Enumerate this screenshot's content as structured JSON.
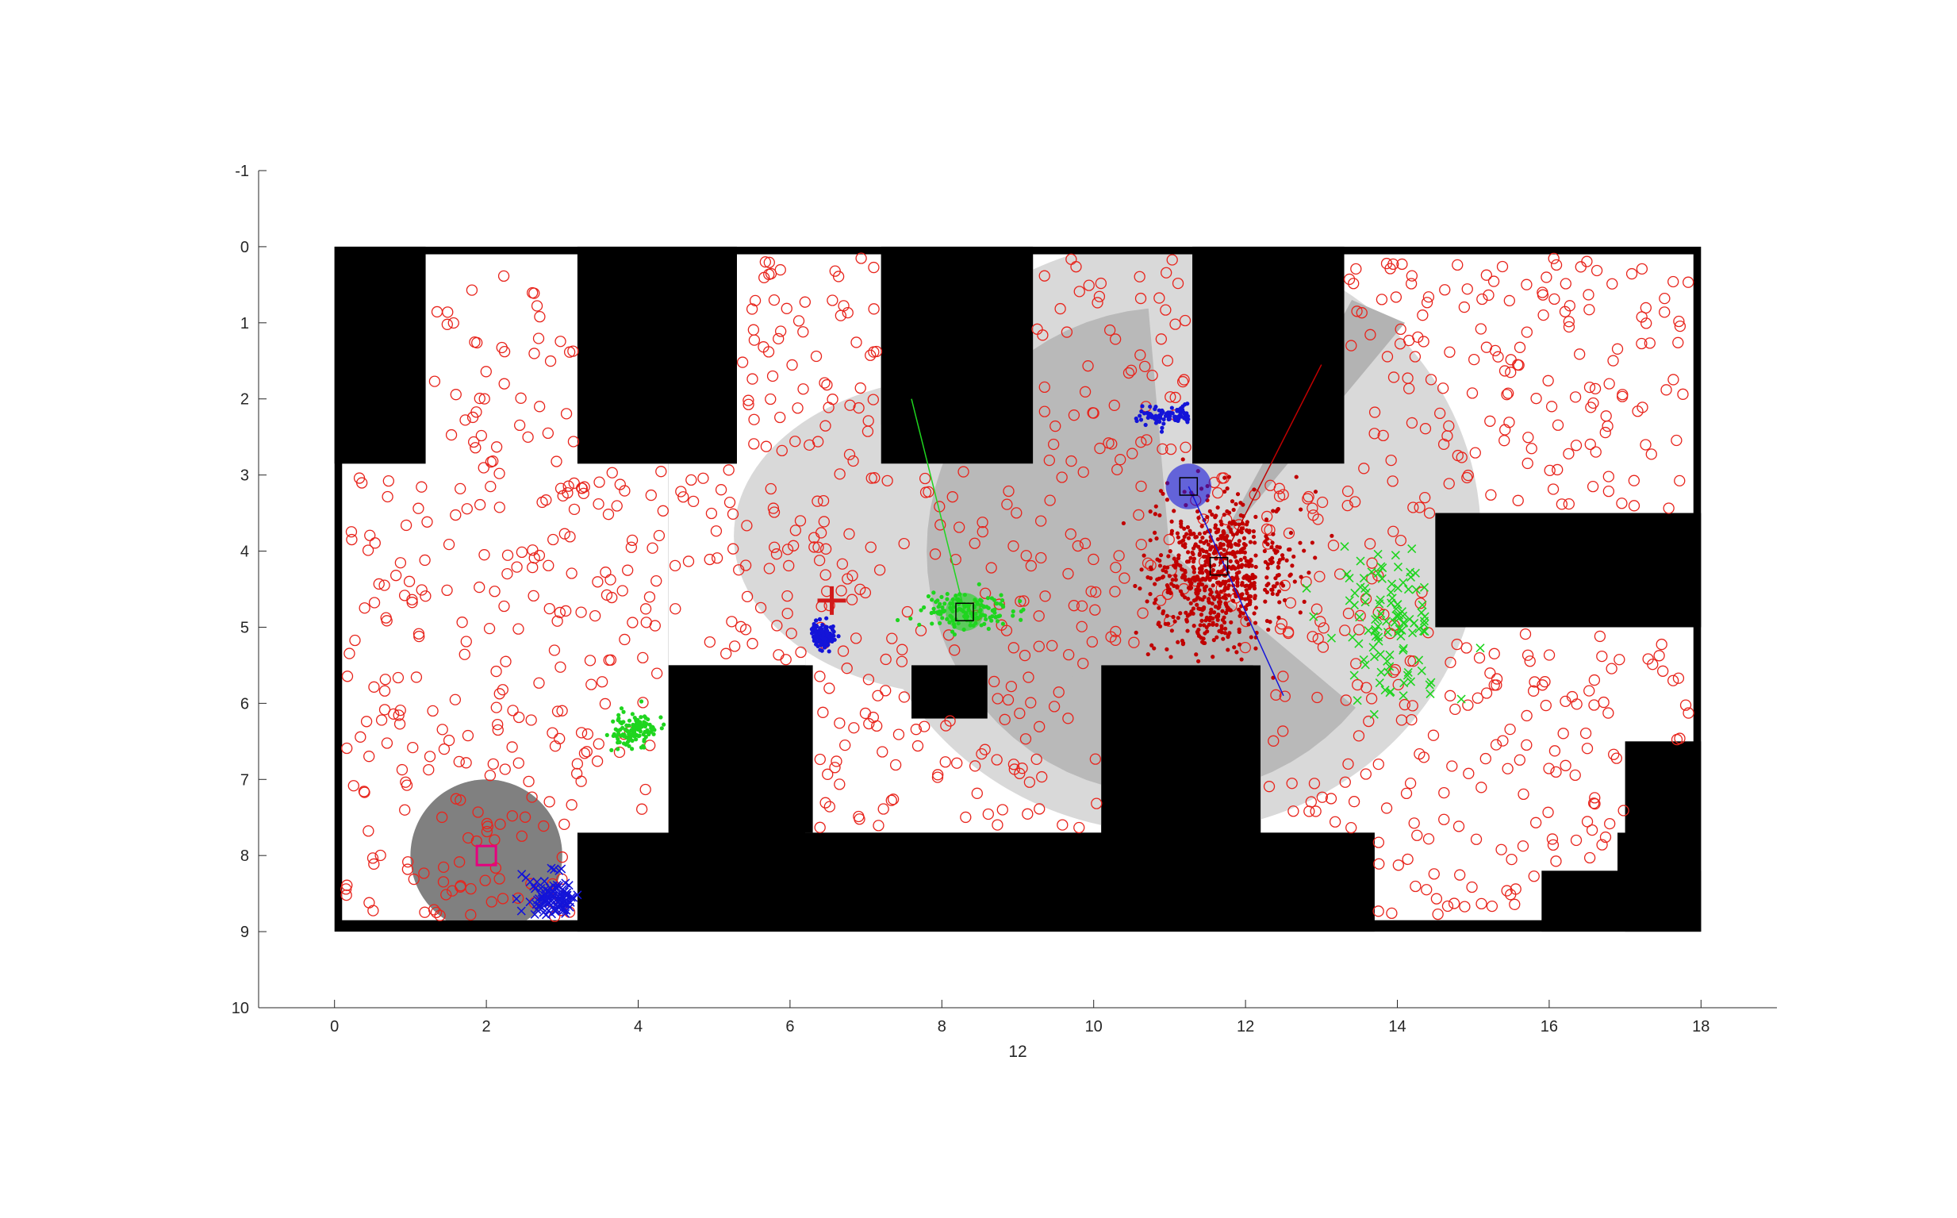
{
  "chart_data": {
    "type": "scatter",
    "title": "",
    "xlabel": "12",
    "ylabel": "",
    "xlim": [
      -1,
      19
    ],
    "ylim": [
      -1,
      10
    ],
    "y_reversed": true,
    "grid": false,
    "legend": "none",
    "x_ticks": [
      "0",
      "2",
      "4",
      "6",
      "8",
      "10",
      "12",
      "14",
      "16",
      "18"
    ],
    "y_ticks": [
      "-1",
      "0",
      "1",
      "2",
      "3",
      "4",
      "5",
      "6",
      "7",
      "8",
      "9",
      "10"
    ],
    "colors": {
      "wall": "#000000",
      "free_space": "#ffffff",
      "sensor_fov": "#d9d9d9",
      "sensor_overlap": "#b3b3b3",
      "robot_disc": "#808080",
      "particles_red": "#e8241c",
      "particles_green": "#1fd51f",
      "particles_blue": "#1414d8",
      "target": "#e6007e",
      "goal_marker": "#d11a1a"
    },
    "map": {
      "boundary": [
        0,
        0,
        18,
        9
      ],
      "free_cells": [
        [
          1.2,
          0.1,
          3.2,
          2.9
        ],
        [
          0.1,
          2.85,
          4.4,
          8.85
        ],
        [
          4.4,
          2.85,
          6.2,
          5.5
        ],
        [
          5.3,
          0.1,
          7.2,
          2.9
        ],
        [
          6.2,
          2.85,
          10.1,
          7.7
        ],
        [
          9.2,
          0.1,
          11.3,
          2.9
        ],
        [
          10.1,
          2.85,
          12.2,
          5.5
        ],
        [
          13.3,
          0.1,
          17.9,
          3.5
        ],
        [
          12.2,
          2.85,
          14.5,
          5.5
        ],
        [
          12.2,
          5.0,
          17.9,
          7.7
        ],
        [
          13.7,
          5.0,
          16.9,
          8.85
        ],
        [
          12.2,
          0.1,
          13.3,
          2.9
        ]
      ],
      "obstacles": [
        [
          3.2,
          0,
          5.3,
          2.85
        ],
        [
          7.2,
          0,
          9.2,
          2.85
        ],
        [
          11.3,
          0,
          13.3,
          2.85
        ],
        [
          4.4,
          5.5,
          6.3,
          7.7
        ],
        [
          7.6,
          5.5,
          8.6,
          6.2
        ],
        [
          10.1,
          5.5,
          12.1,
          7.7
        ],
        [
          14.5,
          3.5,
          18,
          5.0
        ],
        [
          3.2,
          7.7,
          13.7,
          9.0
        ],
        [
          17.0,
          6.5,
          18,
          9.0
        ],
        [
          15.9,
          8.2,
          18,
          9.0
        ],
        [
          0,
          0,
          1.2,
          2.85
        ]
      ]
    },
    "sensor_regions": [
      {
        "name": "large_fov",
        "center": [
          11.0,
          3.8
        ],
        "radius": 4.1,
        "color": "#d9d9d9"
      },
      {
        "name": "wedge_fov",
        "center": [
          10.2,
          4.6
        ],
        "radius": 3.2,
        "color": "#b3b3b3"
      },
      {
        "name": "corridor_fov",
        "center": [
          8.3,
          3.8
        ],
        "radius": 3.8,
        "color": "#d9d9d9"
      }
    ],
    "robot": {
      "x": 2.0,
      "y": 8.0,
      "radius": 1.0
    },
    "target_square": {
      "x": 2.0,
      "y": 8.0,
      "color": "#e6007e"
    },
    "goal_plus": {
      "x": 6.55,
      "y": 4.65
    },
    "agents": [
      {
        "color": "green",
        "x": 8.3,
        "y": 4.8,
        "heading_end": [
          7.6,
          2.0
        ],
        "disc_radius": 0.25
      },
      {
        "color": "blue",
        "x": 11.25,
        "y": 3.15,
        "heading_end": [
          12.5,
          5.9
        ],
        "disc_radius": 0.3
      },
      {
        "color": "red",
        "x": 11.65,
        "y": 4.2,
        "heading_end": [
          13.0,
          1.55
        ]
      }
    ],
    "series": [
      {
        "name": "",
        "marker": "o",
        "color": "#e8241c",
        "spread": "free space",
        "count": 1050
      },
      {
        "name": "",
        "marker": ".",
        "color": "#c00000",
        "cluster": [
          11.65,
          4.3
        ],
        "sigma": [
          0.45,
          0.5
        ],
        "count": 700
      },
      {
        "name": "",
        "marker": ".",
        "color": "#1fd51f",
        "cluster": [
          8.3,
          4.8
        ],
        "sigma": [
          0.3,
          0.12
        ],
        "count": 140
      },
      {
        "name": "",
        "marker": ".",
        "color": "#1fd51f",
        "cluster": [
          3.95,
          6.35
        ],
        "sigma": [
          0.15,
          0.12
        ],
        "count": 120
      },
      {
        "name": "",
        "marker": ".",
        "color": "#1414d8",
        "cluster": [
          6.45,
          5.1
        ],
        "sigma": [
          0.08,
          0.08
        ],
        "count": 120
      },
      {
        "name": "",
        "marker": ".",
        "color": "#1414d8",
        "cluster": [
          11.0,
          2.2
        ],
        "sigma": [
          0.25,
          0.07
        ],
        "count": 90
      },
      {
        "name": "",
        "marker": "x",
        "color": "#1fd51f",
        "cluster": [
          13.9,
          5.0
        ],
        "sigma": [
          0.4,
          0.45
        ],
        "count": 110
      },
      {
        "name": "",
        "marker": "x",
        "color": "#1414d8",
        "cluster": [
          2.9,
          8.6
        ],
        "sigma": [
          0.18,
          0.18
        ],
        "count": 100
      }
    ]
  }
}
